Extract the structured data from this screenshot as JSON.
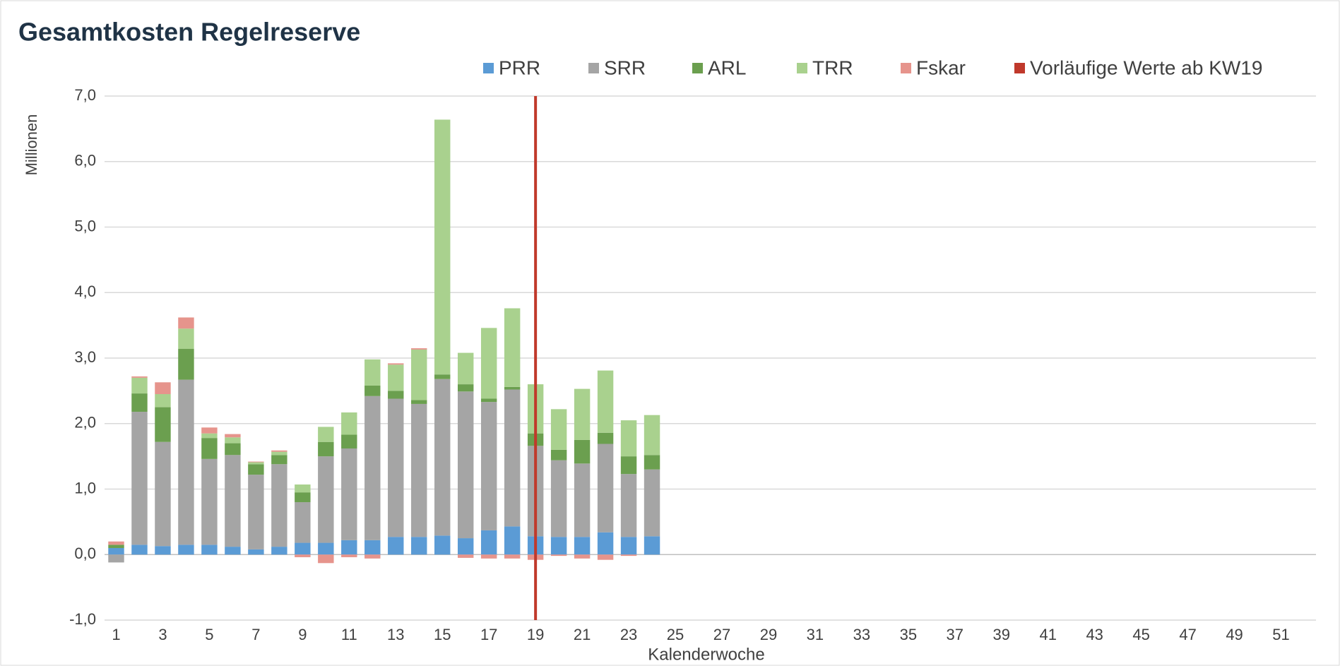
{
  "chart_data": {
    "type": "stacked_bar",
    "title": "Gesamtkosten Regelreserve",
    "y_label": "Millionen",
    "x_label": "Kalenderwoche",
    "categories": [
      "1",
      null,
      "3",
      null,
      "5",
      null,
      "7",
      null,
      "9",
      null,
      "11",
      null,
      "13",
      null,
      "15",
      null,
      "17",
      null,
      "19",
      null,
      "21",
      null,
      "23",
      null,
      "25",
      null,
      "27",
      null,
      "29",
      null,
      "31",
      null,
      "33",
      null,
      "35",
      null,
      "37",
      null,
      "39",
      null,
      "41",
      null,
      "43",
      null,
      "45",
      null,
      "47",
      null,
      "49",
      null,
      "51",
      null
    ],
    "series": [
      {
        "name": "PRR",
        "color": "#5b9bd5",
        "values": [
          0.1,
          0.15,
          0.13,
          0.15,
          0.15,
          0.12,
          0.08,
          0.12,
          0.18,
          0.18,
          0.22,
          0.22,
          0.27,
          0.27,
          0.29,
          0.25,
          0.37,
          0.43,
          0.28,
          0.27,
          0.27,
          0.34,
          0.27,
          0.28,
          null,
          null,
          null,
          null,
          null,
          null,
          null,
          null,
          null,
          null,
          null,
          null,
          null,
          null,
          null,
          null,
          null,
          null,
          null,
          null,
          null,
          null,
          null,
          null,
          null,
          null,
          null,
          null
        ]
      },
      {
        "name": "SRR",
        "color": "#a5a5a5",
        "values": [
          -0.12,
          2.03,
          1.59,
          2.52,
          1.31,
          1.4,
          1.14,
          1.26,
          0.62,
          1.32,
          1.4,
          2.2,
          2.11,
          2.03,
          2.39,
          2.24,
          1.96,
          2.09,
          1.38,
          1.17,
          1.12,
          1.35,
          0.96,
          1.02,
          null,
          null,
          null,
          null,
          null,
          null,
          null,
          null,
          null,
          null,
          null,
          null,
          null,
          null,
          null,
          null,
          null,
          null,
          null,
          null,
          null,
          null,
          null,
          null,
          null,
          null,
          null,
          null
        ]
      },
      {
        "name": "ARL",
        "color": "#6b9f4f",
        "values": [
          0.05,
          0.28,
          0.53,
          0.47,
          0.32,
          0.18,
          0.16,
          0.14,
          0.15,
          0.22,
          0.21,
          0.16,
          0.12,
          0.06,
          0.07,
          0.11,
          0.05,
          0.04,
          0.19,
          0.16,
          0.36,
          0.17,
          0.27,
          0.22,
          null,
          null,
          null,
          null,
          null,
          null,
          null,
          null,
          null,
          null,
          null,
          null,
          null,
          null,
          null,
          null,
          null,
          null,
          null,
          null,
          null,
          null,
          null,
          null,
          null,
          null,
          null,
          null
        ]
      },
      {
        "name": "TRR",
        "color": "#a9d18e",
        "values": [
          0,
          0.24,
          0.2,
          0.31,
          0.07,
          0.09,
          0.03,
          0.05,
          0.12,
          0.23,
          0.34,
          0.4,
          0.4,
          0.77,
          3.89,
          0.48,
          1.08,
          1.2,
          0.75,
          0.62,
          0.78,
          0.95,
          0.55,
          0.61,
          null,
          null,
          null,
          null,
          null,
          null,
          null,
          null,
          null,
          null,
          null,
          null,
          null,
          null,
          null,
          null,
          null,
          null,
          null,
          null,
          null,
          null,
          null,
          null,
          null,
          null,
          null,
          null
        ]
      },
      {
        "name": "Fskar",
        "color": "#e6948c",
        "values": [
          0.05,
          0.02,
          0.18,
          0.17,
          0.09,
          0.05,
          0.01,
          0.02,
          -0.04,
          -0.13,
          -0.04,
          -0.06,
          0.02,
          0.02,
          0,
          -0.05,
          -0.06,
          -0.06,
          -0.08,
          -0.02,
          -0.06,
          -0.08,
          -0.02,
          0,
          null,
          null,
          null,
          null,
          null,
          null,
          null,
          null,
          null,
          null,
          null,
          null,
          null,
          null,
          null,
          null,
          null,
          null,
          null,
          null,
          null,
          null,
          null,
          null,
          null,
          null,
          null,
          null
        ]
      }
    ],
    "marker_line": {
      "name": "Vorläufige Werte ab KW19",
      "color": "#c0392b",
      "x": "19"
    },
    "ylim": [
      -1,
      7
    ],
    "yticks": [
      {
        "value": -1,
        "label": "-1,0"
      },
      {
        "value": 0,
        "label": "0,0"
      },
      {
        "value": 1,
        "label": "1,0"
      },
      {
        "value": 2,
        "label": "2,0"
      },
      {
        "value": 3,
        "label": "3,0"
      },
      {
        "value": 4,
        "label": "4,0"
      },
      {
        "value": 5,
        "label": "5,0"
      },
      {
        "value": 6,
        "label": "6,0"
      },
      {
        "value": 7,
        "label": "7,0"
      }
    ],
    "grid": true
  }
}
